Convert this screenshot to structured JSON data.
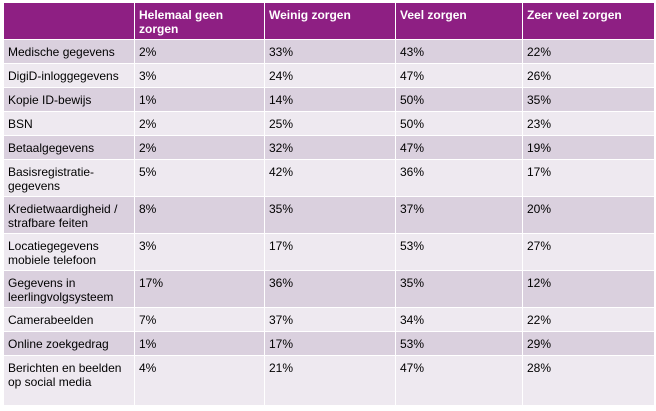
{
  "colors": {
    "header_bg": "#8e1f83",
    "row_dark": "#dad0de",
    "row_light": "#eee9f0"
  },
  "table": {
    "headers": [
      "",
      "Helemaal geen zorgen",
      "Weinig zorgen",
      "Veel zorgen",
      "Zeer veel zorgen"
    ],
    "rows": [
      [
        "Medische gegevens",
        "2%",
        "33%",
        "43%",
        "22%"
      ],
      [
        "DigiD-inloggegevens",
        "3%",
        "24%",
        "47%",
        "26%"
      ],
      [
        "Kopie ID-bewijs",
        "1%",
        "14%",
        "50%",
        "35%"
      ],
      [
        "BSN",
        "2%",
        "25%",
        "50%",
        "23%"
      ],
      [
        "Betaalgegevens",
        "2%",
        "32%",
        "47%",
        "19%"
      ],
      [
        "Basisregistratie-gegevens",
        "5%",
        "42%",
        "36%",
        "17%"
      ],
      [
        "Kredietwaardigheid / strafbare feiten",
        "8%",
        "35%",
        "37%",
        "20%"
      ],
      [
        "Locatiegegevens mobiele telefoon",
        "3%",
        "17%",
        "53%",
        "27%"
      ],
      [
        "Gegevens in leerlingvolgsysteem",
        "17%",
        "36%",
        "35%",
        "12%"
      ],
      [
        "Camerabeelden",
        "7%",
        "37%",
        "34%",
        "22%"
      ],
      [
        "Online zoekgedrag",
        "1%",
        "17%",
        "53%",
        "29%"
      ],
      [
        "Berichten en beelden op social media",
        "4%",
        "21%",
        "47%",
        "28%"
      ]
    ]
  }
}
